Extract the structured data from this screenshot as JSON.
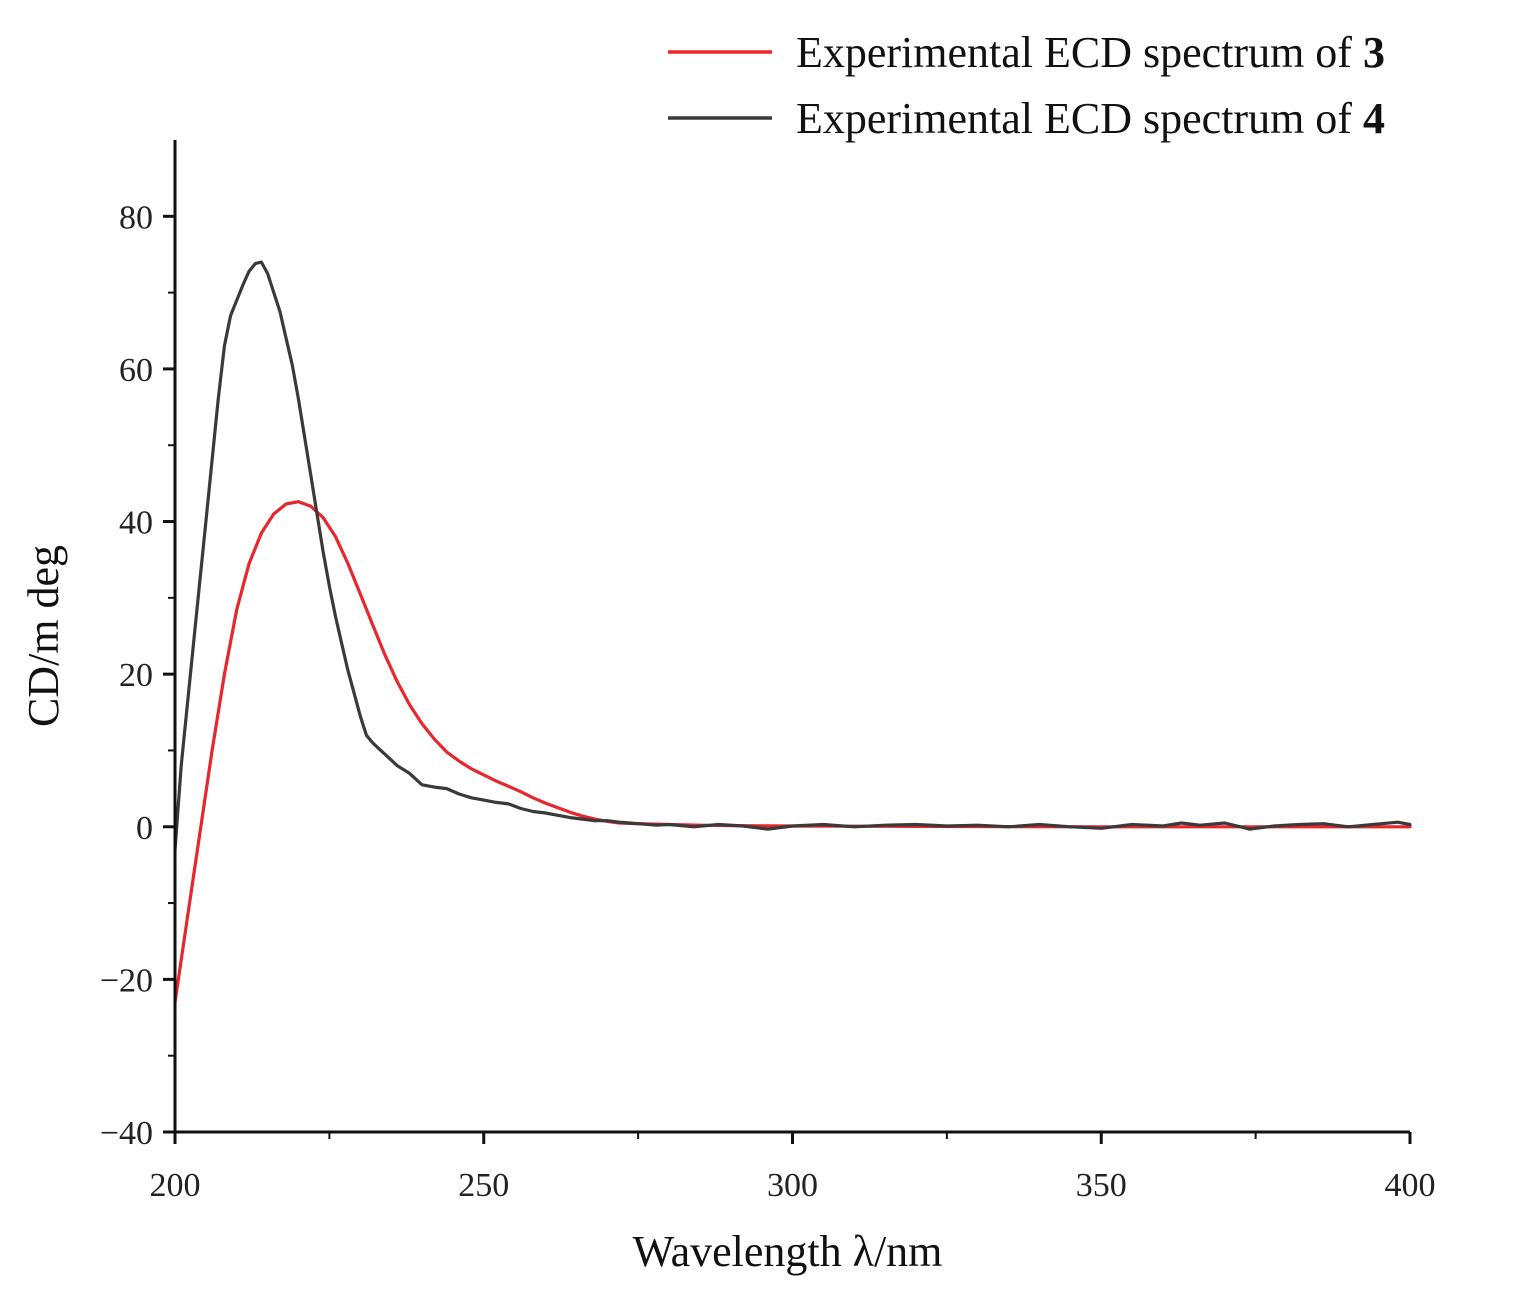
{
  "chart_data": {
    "type": "line",
    "title": "",
    "xlabel": "Wavelength λ/nm",
    "ylabel": "CD/m deg",
    "xlim": [
      200,
      400
    ],
    "ylim": [
      -40,
      90
    ],
    "x_ticks": [
      200,
      250,
      300,
      350,
      400
    ],
    "y_ticks": [
      -40,
      -20,
      0,
      20,
      40,
      60,
      80
    ],
    "x_tick_labels": [
      "200",
      "250",
      "300",
      "350",
      "400"
    ],
    "y_tick_labels": [
      "−40",
      "−20",
      "0",
      "20",
      "40",
      "60",
      "80"
    ],
    "grid": false,
    "legend_position": "top-right",
    "series": [
      {
        "name": "Experimental ECD spectrum of 3",
        "legend_prefix": "Experimental ECD spectrum of ",
        "legend_bold": "3",
        "color": "#e8262c",
        "points": [
          [
            200,
            -23
          ],
          [
            202,
            -12
          ],
          [
            204,
            -1
          ],
          [
            206,
            10
          ],
          [
            208,
            20
          ],
          [
            210,
            28.5
          ],
          [
            212,
            34.5
          ],
          [
            214,
            38.5
          ],
          [
            216,
            41
          ],
          [
            218,
            42.3
          ],
          [
            220,
            42.6
          ],
          [
            222,
            42
          ],
          [
            224,
            40.5
          ],
          [
            226,
            38
          ],
          [
            228,
            34.5
          ],
          [
            230,
            30.5
          ],
          [
            232,
            26.5
          ],
          [
            234,
            22.5
          ],
          [
            236,
            19
          ],
          [
            238,
            16
          ],
          [
            240,
            13.5
          ],
          [
            242,
            11.5
          ],
          [
            244,
            9.8
          ],
          [
            246,
            8.6
          ],
          [
            248,
            7.6
          ],
          [
            250,
            6.8
          ],
          [
            252,
            6
          ],
          [
            254,
            5.3
          ],
          [
            256,
            4.6
          ],
          [
            258,
            3.8
          ],
          [
            260,
            3.1
          ],
          [
            262,
            2.5
          ],
          [
            264,
            1.9
          ],
          [
            266,
            1.4
          ],
          [
            268,
            1
          ],
          [
            270,
            0.7
          ],
          [
            272,
            0.5
          ],
          [
            275,
            0.4
          ],
          [
            280,
            0.3
          ],
          [
            285,
            0.2
          ],
          [
            290,
            0.15
          ],
          [
            300,
            0.1
          ],
          [
            320,
            0.05
          ],
          [
            350,
            0.0
          ],
          [
            380,
            0.0
          ],
          [
            400,
            0.0
          ]
        ]
      },
      {
        "name": "Experimental ECD spectrum of 4",
        "legend_prefix": "Experimental ECD spectrum of ",
        "legend_bold": "4",
        "color": "#3a3a3a",
        "points": [
          [
            200,
            -3
          ],
          [
            201,
            8
          ],
          [
            203,
            24
          ],
          [
            205,
            40
          ],
          [
            207,
            56
          ],
          [
            208,
            63
          ],
          [
            209,
            67
          ],
          [
            210,
            69
          ],
          [
            211,
            71
          ],
          [
            212,
            72.8
          ],
          [
            213,
            73.8
          ],
          [
            214,
            74
          ],
          [
            215,
            72.5
          ],
          [
            216,
            70
          ],
          [
            217,
            67.5
          ],
          [
            218,
            64
          ],
          [
            219,
            60.5
          ],
          [
            220,
            56
          ],
          [
            221,
            51
          ],
          [
            222,
            46
          ],
          [
            223,
            41
          ],
          [
            224,
            36
          ],
          [
            225,
            31.5
          ],
          [
            226,
            27.5
          ],
          [
            227,
            24
          ],
          [
            228,
            20.5
          ],
          [
            229,
            17.5
          ],
          [
            230,
            14.5
          ],
          [
            231,
            12
          ],
          [
            232,
            11
          ],
          [
            234,
            9.5
          ],
          [
            236,
            8
          ],
          [
            238,
            7
          ],
          [
            240,
            5.5
          ],
          [
            242,
            5.2
          ],
          [
            244,
            5.0
          ],
          [
            246,
            4.3
          ],
          [
            248,
            3.8
          ],
          [
            250,
            3.5
          ],
          [
            252,
            3.2
          ],
          [
            254,
            3.0
          ],
          [
            256,
            2.4
          ],
          [
            258,
            2.0
          ],
          [
            260,
            1.8
          ],
          [
            262,
            1.5
          ],
          [
            264,
            1.2
          ],
          [
            266,
            1.0
          ],
          [
            268,
            0.8
          ],
          [
            270,
            0.8
          ],
          [
            272,
            0.6
          ],
          [
            275,
            0.4
          ],
          [
            278,
            0.2
          ],
          [
            280,
            0.3
          ],
          [
            284,
            0.0
          ],
          [
            288,
            0.3
          ],
          [
            292,
            0.1
          ],
          [
            296,
            -0.3
          ],
          [
            300,
            0.1
          ],
          [
            305,
            0.3
          ],
          [
            310,
            0.0
          ],
          [
            315,
            0.2
          ],
          [
            320,
            0.3
          ],
          [
            325,
            0.1
          ],
          [
            330,
            0.2
          ],
          [
            335,
            0.0
          ],
          [
            340,
            0.3
          ],
          [
            345,
            0.0
          ],
          [
            350,
            -0.2
          ],
          [
            355,
            0.3
          ],
          [
            360,
            0.1
          ],
          [
            363,
            0.5
          ],
          [
            366,
            0.2
          ],
          [
            370,
            0.5
          ],
          [
            374,
            -0.3
          ],
          [
            378,
            0.1
          ],
          [
            382,
            0.3
          ],
          [
            386,
            0.4
          ],
          [
            390,
            0.0
          ],
          [
            394,
            0.3
          ],
          [
            398,
            0.6
          ],
          [
            400,
            0.3
          ]
        ]
      }
    ]
  }
}
